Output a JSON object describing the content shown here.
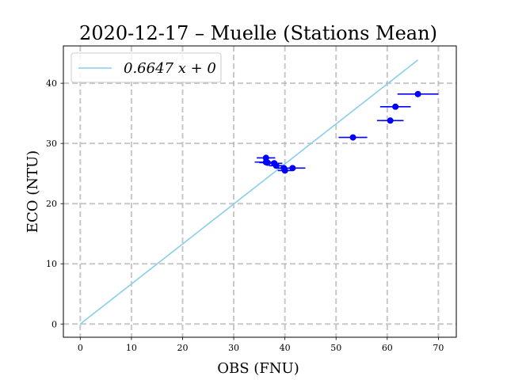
{
  "chart_data": {
    "type": "scatter",
    "title": "2020-12-17 – Muelle (Stations Mean)",
    "xlabel": "OBS (FNU)",
    "ylabel": "ECO (NTU)",
    "xlim": [
      -3.3,
      73.5
    ],
    "ylim": [
      -2.2,
      46.2
    ],
    "xticks": [
      0,
      10,
      20,
      30,
      40,
      50,
      60,
      70
    ],
    "yticks": [
      0,
      10,
      20,
      30,
      40
    ],
    "grid": true,
    "legend_position": "top-left",
    "fit_line": {
      "label": "0.6647 x + 0",
      "slope": 0.6647,
      "intercept": 0,
      "x_range": [
        0,
        66
      ],
      "color": "#87ceeb"
    },
    "series": [
      {
        "color": "#0000ff",
        "points": [
          {
            "x": 36.3,
            "y": 27.6,
            "xerr": 1.8
          },
          {
            "x": 36.3,
            "y": 26.9,
            "xerr": 2.2
          },
          {
            "x": 36.6,
            "y": 26.8,
            "xerr": 1.6
          },
          {
            "x": 37.9,
            "y": 26.7,
            "xerr": 1.6
          },
          {
            "x": 38.3,
            "y": 26.3,
            "xerr": 1.4
          },
          {
            "x": 39.8,
            "y": 25.9,
            "xerr": 1.4
          },
          {
            "x": 40.0,
            "y": 25.5,
            "xerr": 1.4
          },
          {
            "x": 41.5,
            "y": 25.9,
            "xerr": 2.5
          },
          {
            "x": 53.3,
            "y": 31.0,
            "xerr": 2.8
          },
          {
            "x": 60.6,
            "y": 33.8,
            "xerr": 2.6
          },
          {
            "x": 61.6,
            "y": 36.1,
            "xerr": 3.0
          },
          {
            "x": 66.0,
            "y": 38.2,
            "xerr": 4.0
          }
        ]
      }
    ]
  }
}
